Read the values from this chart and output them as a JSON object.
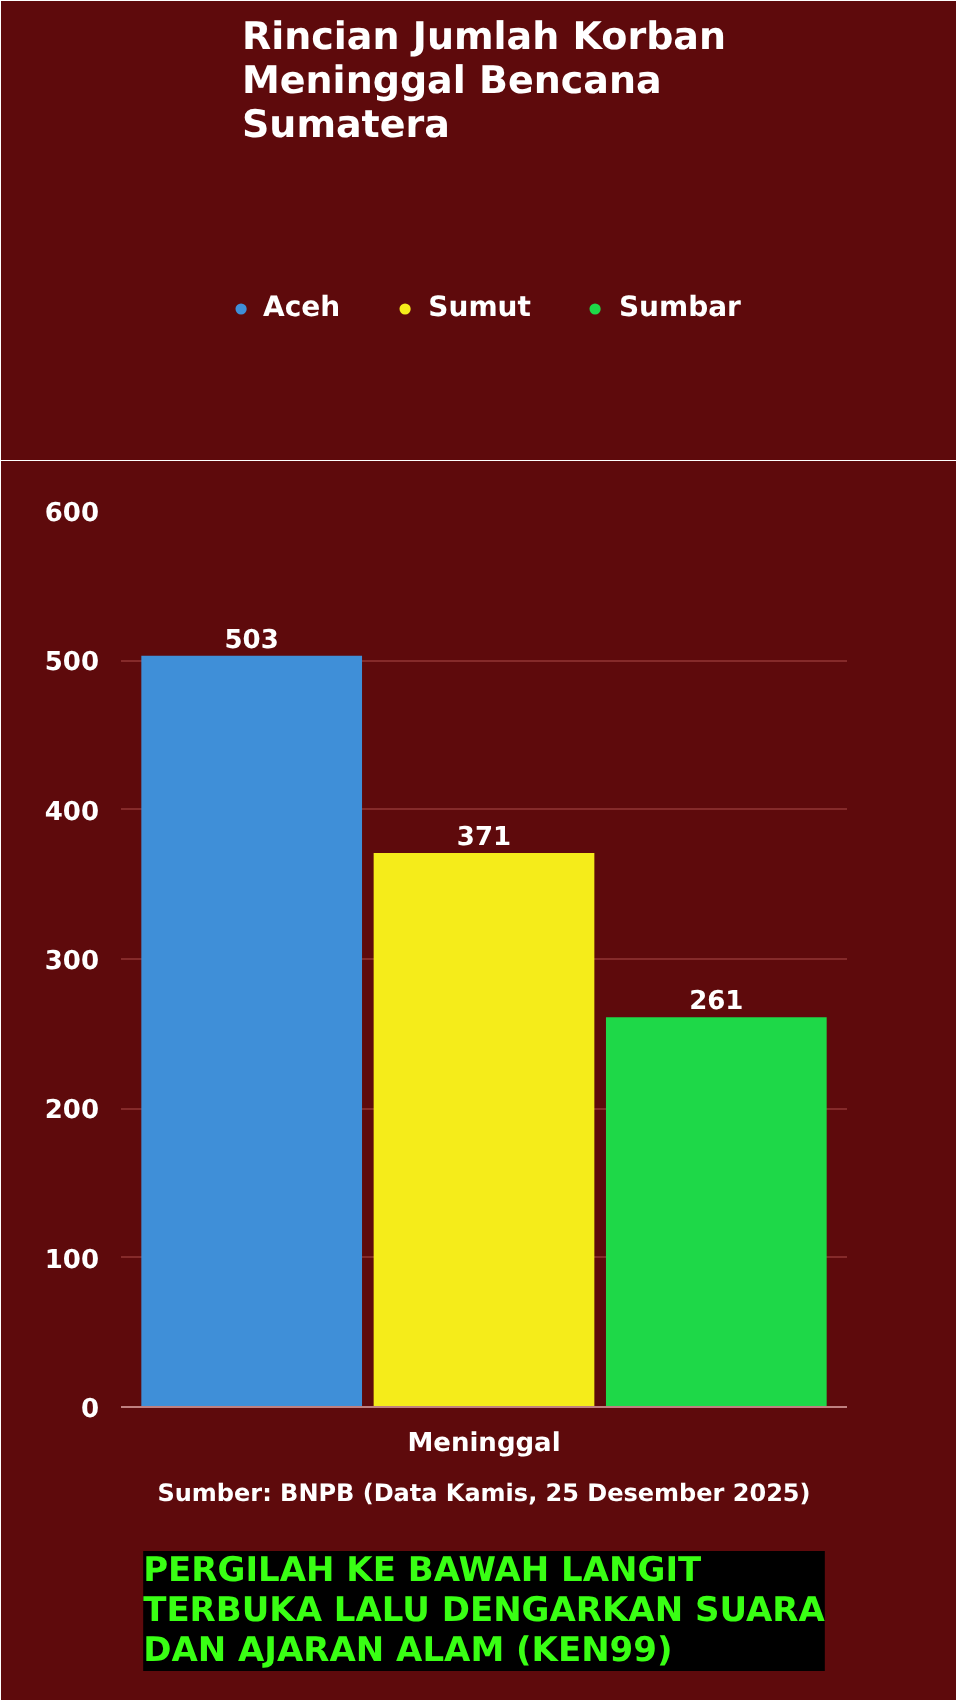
{
  "chart_data": {
    "type": "bar",
    "title": "Rincian Jumlah Korban Meninggal Bencana Sumatera",
    "categories": [
      "Meninggal"
    ],
    "series": [
      {
        "name": "Aceh",
        "color": "#3f8fd8",
        "values": [
          503
        ]
      },
      {
        "name": "Sumut",
        "color": "#f5ec1a",
        "values": [
          371
        ]
      },
      {
        "name": "Sumbar",
        "color": "#1ed848",
        "values": [
          261
        ]
      }
    ],
    "ylim": [
      0,
      600
    ],
    "yticks": [
      0,
      100,
      200,
      300,
      400,
      500,
      600
    ],
    "grid": "y",
    "legend": "top",
    "data_labels": true,
    "annotations": [
      "Sumber: BNPB (Data Kamis, 25 Desember 2025)",
      "PERGILAH KE BAWAH LANGIT TERBUKA LALU DENGARKAN SUARA DAN AJARAN ALAM (KEN99)"
    ]
  }
}
